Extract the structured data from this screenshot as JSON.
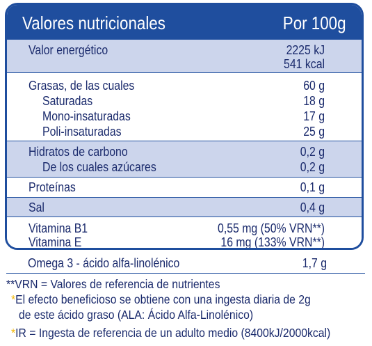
{
  "header": {
    "title": "Valores nutricionales",
    "per": "Por 100g"
  },
  "rows": {
    "energia": {
      "label": "Valor energético",
      "value_kj": "2225 kJ",
      "value_kcal": "541 kcal"
    },
    "grasas": {
      "label": "Grasas, de las cuales",
      "value": "60 g"
    },
    "saturadas": {
      "label": "Saturadas",
      "value": "18 g"
    },
    "mono": {
      "label": "Mono-insaturadas",
      "value": "17 g"
    },
    "poli": {
      "label": "Poli-insaturadas",
      "value": "25 g"
    },
    "hidratos": {
      "label": "Hidratos de carbono",
      "value": "0,2 g"
    },
    "azucares": {
      "label": "De los cuales azúcares",
      "value": "0,2 g"
    },
    "proteinas": {
      "label": "Proteínas",
      "value": "0,1 g"
    },
    "sal": {
      "label": "Sal",
      "value": "0,4 g"
    },
    "b1": {
      "label": "Vitamina B1",
      "value": "0,55 mg (50% VRN**)"
    },
    "e": {
      "label": "Vitamina E",
      "value": "16 mg (133% VRN**)"
    },
    "omega": {
      "label": "Omega 3 - ácido alfa-linolénico",
      "value": "1,7 g"
    }
  },
  "footnotes": {
    "vrn": "**VRN = Valores de referencia de nutrientes",
    "star_mark": "*",
    "efecto_1": "El efecto beneficioso se obtiene con una ingesta diaria de 2g",
    "efecto_2": "de este ácido graso (ALA: Ácido Alfa-Linolénico)",
    "ir": "IR = Ingesta de referencia de un adulto medio (8400kJ/2000kcal)"
  },
  "colors": {
    "brand_blue": "#1f4e9e",
    "shade": "#ccd5ec",
    "text": "#1a2a6c",
    "star": "#f2b705"
  }
}
